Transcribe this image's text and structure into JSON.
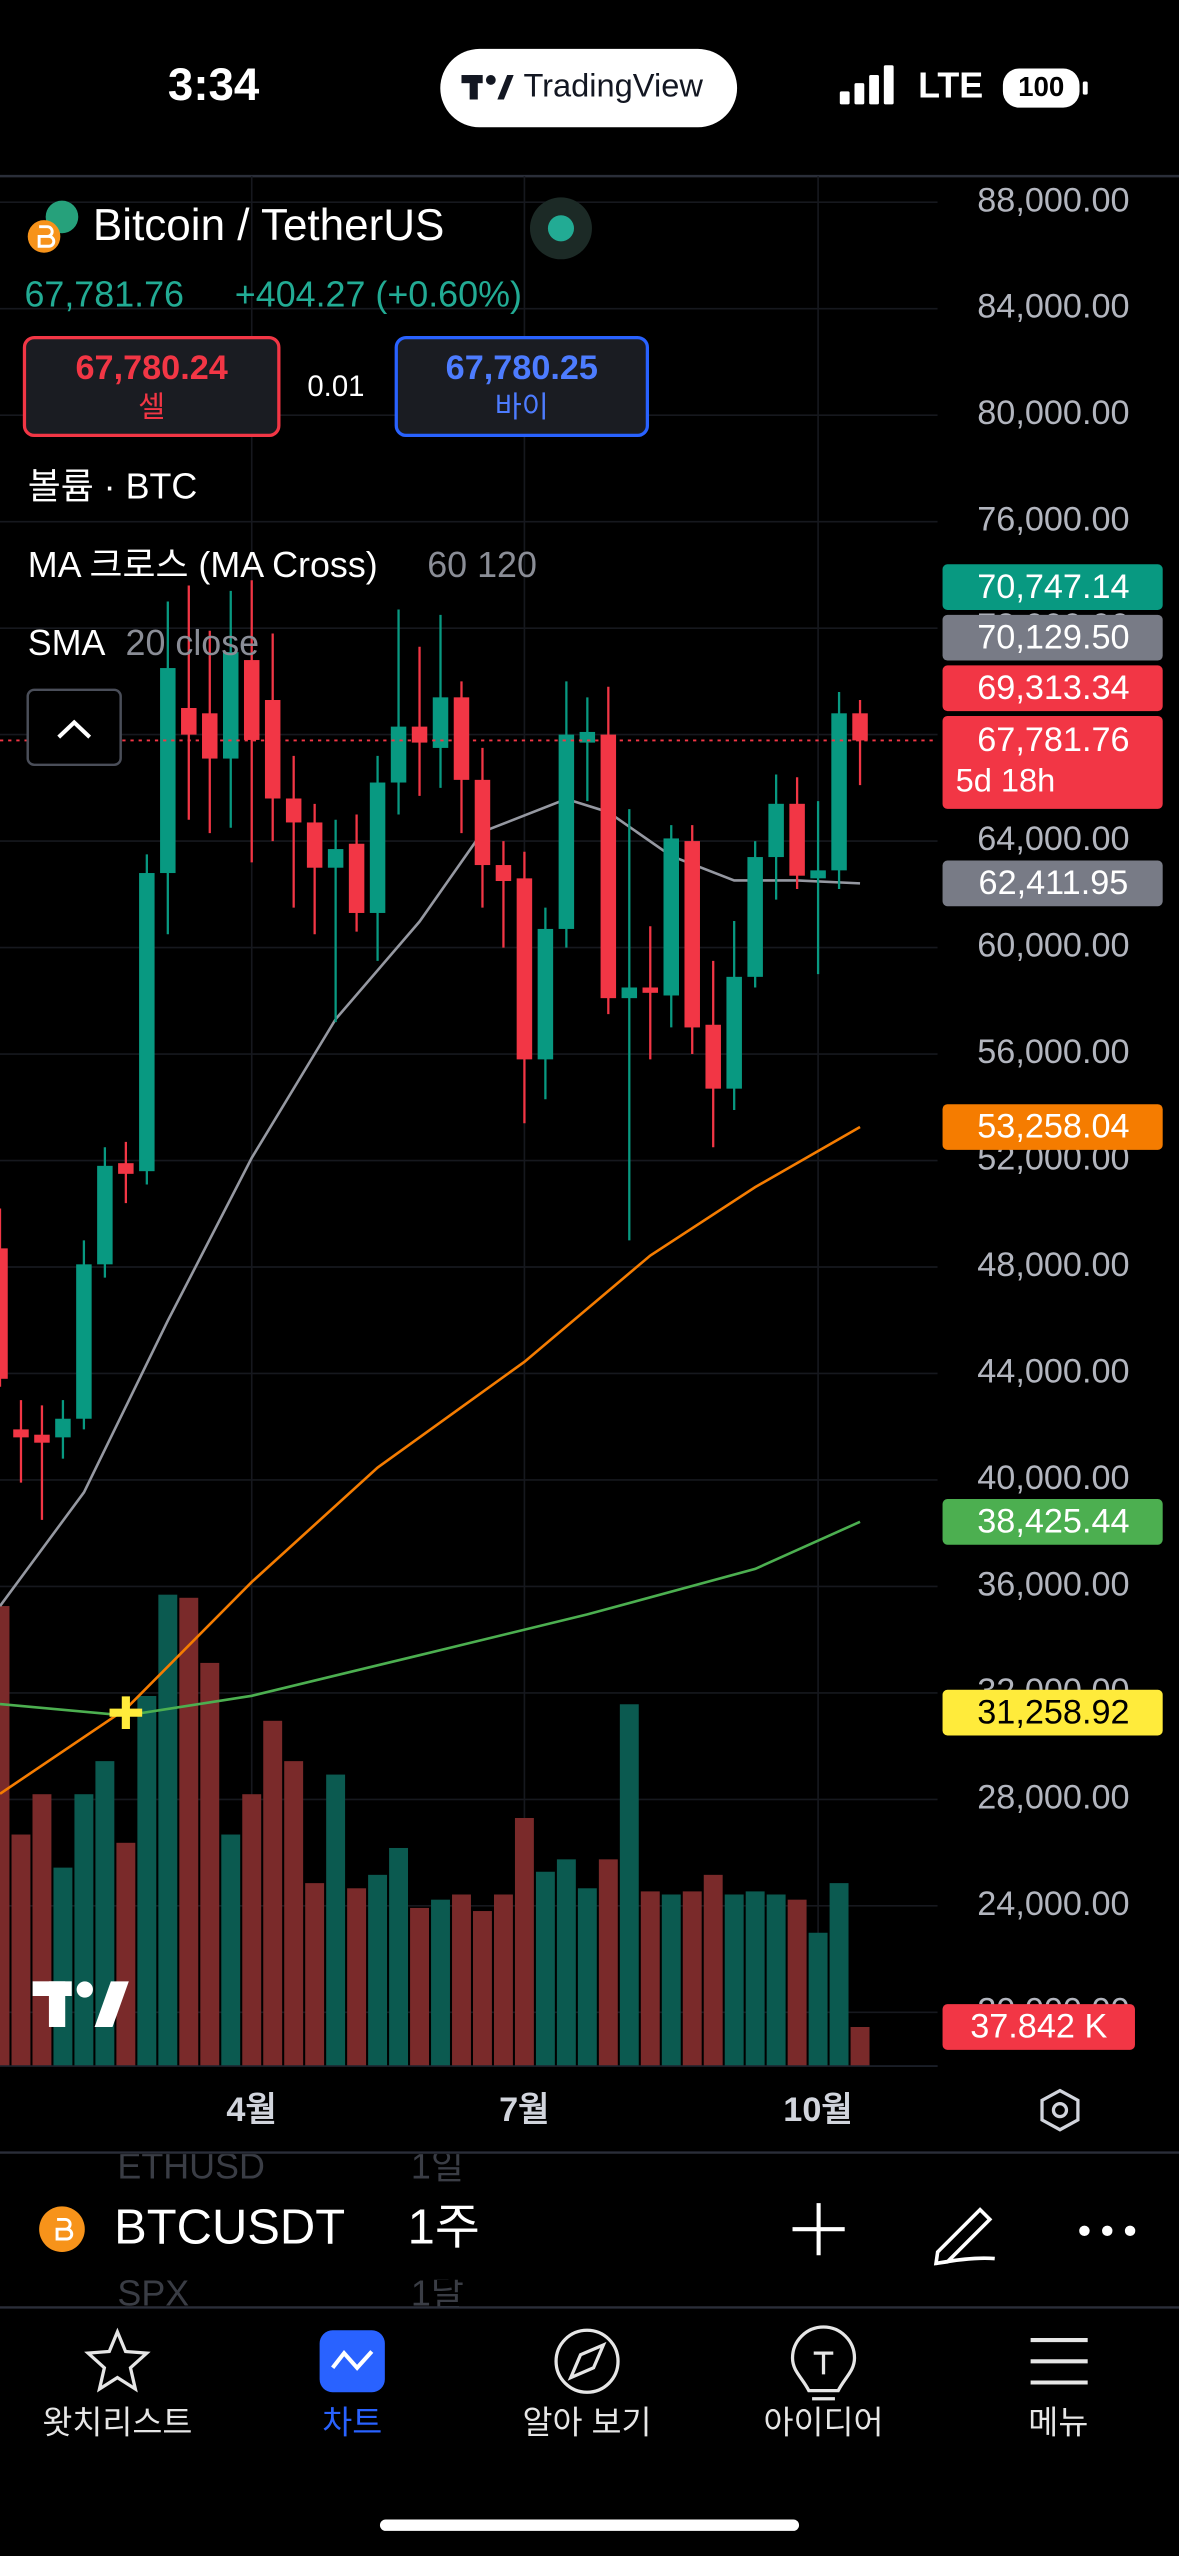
{
  "status_bar": {
    "time": "3:34",
    "app": "TradingView",
    "network": "LTE",
    "battery": "100"
  },
  "header": {
    "symbol_name": "Bitcoin / TetherUS",
    "price": "67,781.76",
    "change": "+404.27 (+0.60%)",
    "sell": {
      "price": "67,780.24",
      "label": "셀"
    },
    "spread": "0.01",
    "buy": {
      "price": "67,780.25",
      "label": "바이"
    }
  },
  "indicators": {
    "volume": "볼륨 · BTC",
    "ma_cross": {
      "name": "MA 크로스 (MA Cross)",
      "params": "60 120"
    },
    "sma": {
      "name": "SMA",
      "params": "20 close"
    }
  },
  "chart_data": {
    "type": "candlestick",
    "open": [
      48700,
      41900,
      41700,
      41600,
      42300,
      48100,
      51900,
      51600,
      62800,
      69000,
      68800,
      67100,
      70800,
      69300,
      65600,
      64700,
      63000,
      63900,
      61300,
      66200,
      68300,
      67500,
      69400,
      66300,
      63100,
      62600,
      55800,
      60700,
      67700,
      68000,
      58100,
      58500,
      58200,
      64000,
      57100,
      54700,
      58900,
      63400,
      65400,
      62600,
      62900,
      68800
    ],
    "high": [
      50200,
      43000,
      42800,
      43000,
      49000,
      52500,
      52700,
      63500,
      73000,
      73600,
      71900,
      73400,
      73800,
      71800,
      67200,
      65400,
      64800,
      65000,
      67200,
      72700,
      71300,
      72500,
      70000,
      67500,
      64000,
      63600,
      61500,
      70000,
      69400,
      69800,
      65200,
      60800,
      64600,
      64600,
      59500,
      61000,
      64000,
      66500,
      66400,
      65500,
      69600,
      69300
    ],
    "low": [
      43500,
      39900,
      38500,
      40800,
      41900,
      47600,
      50400,
      51100,
      60500,
      64800,
      64300,
      64500,
      63200,
      64000,
      61500,
      60500,
      57200,
      60600,
      59500,
      65000,
      65700,
      66000,
      64300,
      61500,
      60000,
      53400,
      54300,
      60000,
      65500,
      57500,
      49000,
      55800,
      57000,
      56000,
      52500,
      53900,
      58500,
      61800,
      62200,
      59000,
      62200,
      66100
    ],
    "close": [
      43800,
      41600,
      41400,
      42300,
      48100,
      51800,
      51500,
      62800,
      70500,
      68000,
      67100,
      71100,
      67800,
      65600,
      64700,
      63000,
      63700,
      61300,
      66200,
      68300,
      67700,
      69400,
      66300,
      63100,
      62500,
      55800,
      60700,
      68000,
      68100,
      58100,
      58500,
      58300,
      64100,
      57000,
      54700,
      58900,
      63400,
      65400,
      62700,
      62900,
      68800,
      67781.76
    ],
    "volume": [
      445000,
      224000,
      263000,
      192000,
      263000,
      295000,
      216000,
      358000,
      456000,
      453000,
      390000,
      224000,
      263000,
      334000,
      295000,
      177000,
      282000,
      172000,
      185000,
      211000,
      153000,
      161000,
      166000,
      150000,
      166000,
      240000,
      188000,
      200000,
      172000,
      200000,
      350000,
      169000,
      166000,
      169000,
      185000,
      166000,
      169000,
      166000,
      161000,
      129000,
      177000,
      37842
    ],
    "volume_label": "37.842 K",
    "volume_lim": [
      0,
      500000
    ],
    "up_color": "#089981",
    "down_color": "#f23645",
    "volume_up_color": "#0b5a50",
    "volume_down_color": "#7a2a2a",
    "last_label": "67,781.76",
    "countdown": "5d 18h",
    "xlim": [
      0,
      44.7
    ],
    "xticks": [
      {
        "value": 12,
        "label": "4월"
      },
      {
        "value": 25,
        "label": "7월"
      },
      {
        "value": 39,
        "label": "10월"
      }
    ],
    "ylim": [
      17980,
      88980
    ],
    "yticks": [
      {
        "value": 88000,
        "label": "88,000.00"
      },
      {
        "value": 84000,
        "label": "84,000.00"
      },
      {
        "value": 80000,
        "label": "80,000.00"
      },
      {
        "value": 76000,
        "label": "76,000.00"
      },
      {
        "value": 72000,
        "label": "72,000.00"
      },
      {
        "value": 68000,
        "label": "68,000.00"
      },
      {
        "value": 64000,
        "label": "64,000.00"
      },
      {
        "value": 60000,
        "label": "60,000.00"
      },
      {
        "value": 56000,
        "label": "56,000.00"
      },
      {
        "value": 52000,
        "label": "52,000.00"
      },
      {
        "value": 48000,
        "label": "48,000.00"
      },
      {
        "value": 44000,
        "label": "44,000.00"
      },
      {
        "value": 40000,
        "label": "40,000.00"
      },
      {
        "value": 36000,
        "label": "36,000.00"
      },
      {
        "value": 32000,
        "label": "32,000.00"
      },
      {
        "value": 28000,
        "label": "28,000.00"
      },
      {
        "value": 24000,
        "label": "24,000.00"
      },
      {
        "value": 20000,
        "label": "20,000.00"
      }
    ],
    "grid": true,
    "series": [
      {
        "color": "#9598a1",
        "badge_color": "#787b86",
        "x": [
          0,
          4,
          8,
          12,
          16,
          20,
          23,
          27,
          29,
          32,
          35,
          38,
          41
        ],
        "values": [
          35260,
          39540,
          45980,
          52100,
          57310,
          60980,
          64350,
          65580,
          65090,
          63440,
          62520,
          62520,
          62411.95
        ],
        "last_label": "62,411.95"
      },
      {
        "color": "#f57c00",
        "badge_color": "#f57c00",
        "x": [
          0,
          6,
          12,
          18,
          25,
          31,
          36,
          41
        ],
        "values": [
          28210,
          31400,
          36170,
          40460,
          44440,
          48430,
          51000,
          53258.04
        ],
        "last_label": "53,258.04"
      },
      {
        "color": "#4caf50",
        "badge_color": "#4caf50",
        "x": [
          0,
          6,
          12,
          20,
          28,
          36,
          41
        ],
        "values": [
          31580,
          31150,
          31890,
          33420,
          34950,
          36660,
          38425.44
        ],
        "last_label": "38,425.44"
      }
    ],
    "cross": {
      "x": 6,
      "value": 31258.92,
      "label": "31,258.92",
      "color": "#ffeb3b"
    },
    "price_labels": [
      {
        "value": 70747.14,
        "label": "70,747.14",
        "color": "#089981"
      },
      {
        "value": 70129.5,
        "label": "70,129.50",
        "color": "#787b86"
      },
      {
        "value": 69313.34,
        "label": "69,313.34",
        "color": "#f23645"
      }
    ]
  },
  "toolbar": {
    "symbol": "BTCUSDT",
    "interval": "1주",
    "behind": [
      {
        "symbol": "ETHUSD",
        "interval": "1일"
      },
      {
        "symbol": "SPX",
        "interval": "1달"
      }
    ]
  },
  "tabs": [
    {
      "label": "왓치리스트"
    },
    {
      "label": "차트"
    },
    {
      "label": "알아 보기"
    },
    {
      "label": "아이디어"
    },
    {
      "label": "메뉴"
    }
  ]
}
